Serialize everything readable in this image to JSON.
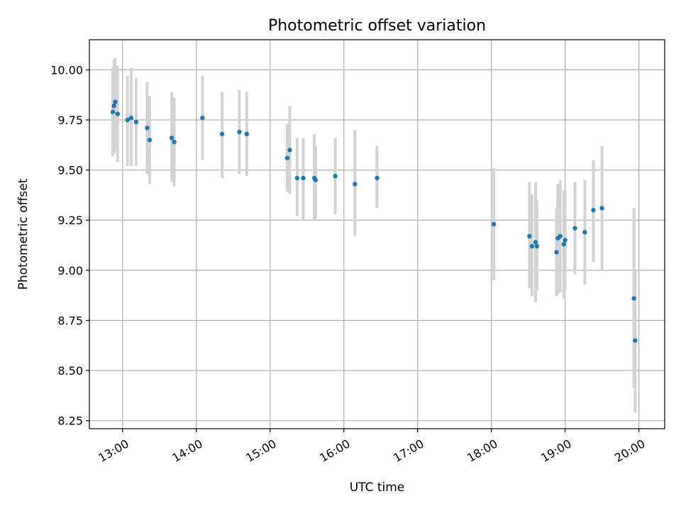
{
  "chart_data": {
    "type": "scatter",
    "title": "Photometric offset variation",
    "xlabel": "UTC time",
    "ylabel": "Photometric offset",
    "xlim": [
      "12:33",
      "20:21"
    ],
    "ylim": [
      8.21,
      10.15
    ],
    "xticks": [
      "13:00",
      "14:00",
      "15:00",
      "16:00",
      "17:00",
      "18:00",
      "19:00",
      "20:00"
    ],
    "yticks": [
      "8.25",
      "8.50",
      "8.75",
      "9.00",
      "9.25",
      "9.50",
      "9.75",
      "10.00"
    ],
    "grid": true,
    "legend": "none",
    "series": [
      {
        "marker": "point",
        "error_bars": true,
        "points": [
          {
            "t": "12:52",
            "y": 9.79,
            "lo": 9.57,
            "hi": 10.01
          },
          {
            "t": "12:53",
            "y": 9.82,
            "lo": 9.58,
            "hi": 10.05
          },
          {
            "t": "12:54",
            "y": 9.84,
            "lo": 9.6,
            "hi": 10.06
          },
          {
            "t": "12:56",
            "y": 9.78,
            "lo": 9.54,
            "hi": 10.02
          },
          {
            "t": "13:04",
            "y": 9.75,
            "lo": 9.52,
            "hi": 9.97
          },
          {
            "t": "13:07",
            "y": 9.76,
            "lo": 9.52,
            "hi": 10.01
          },
          {
            "t": "13:11",
            "y": 9.74,
            "lo": 9.52,
            "hi": 9.96
          },
          {
            "t": "13:20",
            "y": 9.71,
            "lo": 9.48,
            "hi": 9.94
          },
          {
            "t": "13:22",
            "y": 9.65,
            "lo": 9.43,
            "hi": 9.87
          },
          {
            "t": "13:40",
            "y": 9.66,
            "lo": 9.44,
            "hi": 9.89
          },
          {
            "t": "13:42",
            "y": 9.64,
            "lo": 9.42,
            "hi": 9.86
          },
          {
            "t": "14:05",
            "y": 9.76,
            "lo": 9.55,
            "hi": 9.97
          },
          {
            "t": "14:21",
            "y": 9.68,
            "lo": 9.46,
            "hi": 9.89
          },
          {
            "t": "14:35",
            "y": 9.69,
            "lo": 9.48,
            "hi": 9.9
          },
          {
            "t": "14:41",
            "y": 9.68,
            "lo": 9.47,
            "hi": 9.89
          },
          {
            "t": "15:14",
            "y": 9.56,
            "lo": 9.39,
            "hi": 9.73
          },
          {
            "t": "15:16",
            "y": 9.6,
            "lo": 9.38,
            "hi": 9.82
          },
          {
            "t": "15:22",
            "y": 9.46,
            "lo": 9.27,
            "hi": 9.66
          },
          {
            "t": "15:27",
            "y": 9.46,
            "lo": 9.25,
            "hi": 9.66
          },
          {
            "t": "15:36",
            "y": 9.46,
            "lo": 9.25,
            "hi": 9.68
          },
          {
            "t": "15:37",
            "y": 9.45,
            "lo": 9.26,
            "hi": 9.62
          },
          {
            "t": "15:53",
            "y": 9.47,
            "lo": 9.28,
            "hi": 9.66
          },
          {
            "t": "16:09",
            "y": 9.43,
            "lo": 9.17,
            "hi": 9.7
          },
          {
            "t": "16:27",
            "y": 9.46,
            "lo": 9.31,
            "hi": 9.62
          },
          {
            "t": "18:02",
            "y": 9.23,
            "lo": 8.95,
            "hi": 9.51
          },
          {
            "t": "18:31",
            "y": 9.17,
            "lo": 8.91,
            "hi": 9.44
          },
          {
            "t": "18:33",
            "y": 9.12,
            "lo": 8.87,
            "hi": 9.38
          },
          {
            "t": "18:36",
            "y": 9.14,
            "lo": 8.84,
            "hi": 9.44
          },
          {
            "t": "18:37",
            "y": 9.12,
            "lo": 8.9,
            "hi": 9.35
          },
          {
            "t": "18:53",
            "y": 9.09,
            "lo": 8.87,
            "hi": 9.31
          },
          {
            "t": "18:54",
            "y": 9.16,
            "lo": 8.88,
            "hi": 9.43
          },
          {
            "t": "18:56",
            "y": 9.17,
            "lo": 8.89,
            "hi": 9.45
          },
          {
            "t": "18:59",
            "y": 9.13,
            "lo": 8.86,
            "hi": 9.4
          },
          {
            "t": "19:00",
            "y": 9.15,
            "lo": 8.9,
            "hi": 9.4
          },
          {
            "t": "19:08",
            "y": 9.21,
            "lo": 8.98,
            "hi": 9.44
          },
          {
            "t": "19:16",
            "y": 9.19,
            "lo": 8.93,
            "hi": 9.45
          },
          {
            "t": "19:23",
            "y": 9.3,
            "lo": 9.04,
            "hi": 9.55
          },
          {
            "t": "19:30",
            "y": 9.31,
            "lo": 9.0,
            "hi": 9.62
          },
          {
            "t": "19:56",
            "y": 8.86,
            "lo": 8.41,
            "hi": 9.31
          },
          {
            "t": "19:57",
            "y": 8.65,
            "lo": 8.29,
            "hi": 9.0
          }
        ]
      }
    ]
  }
}
